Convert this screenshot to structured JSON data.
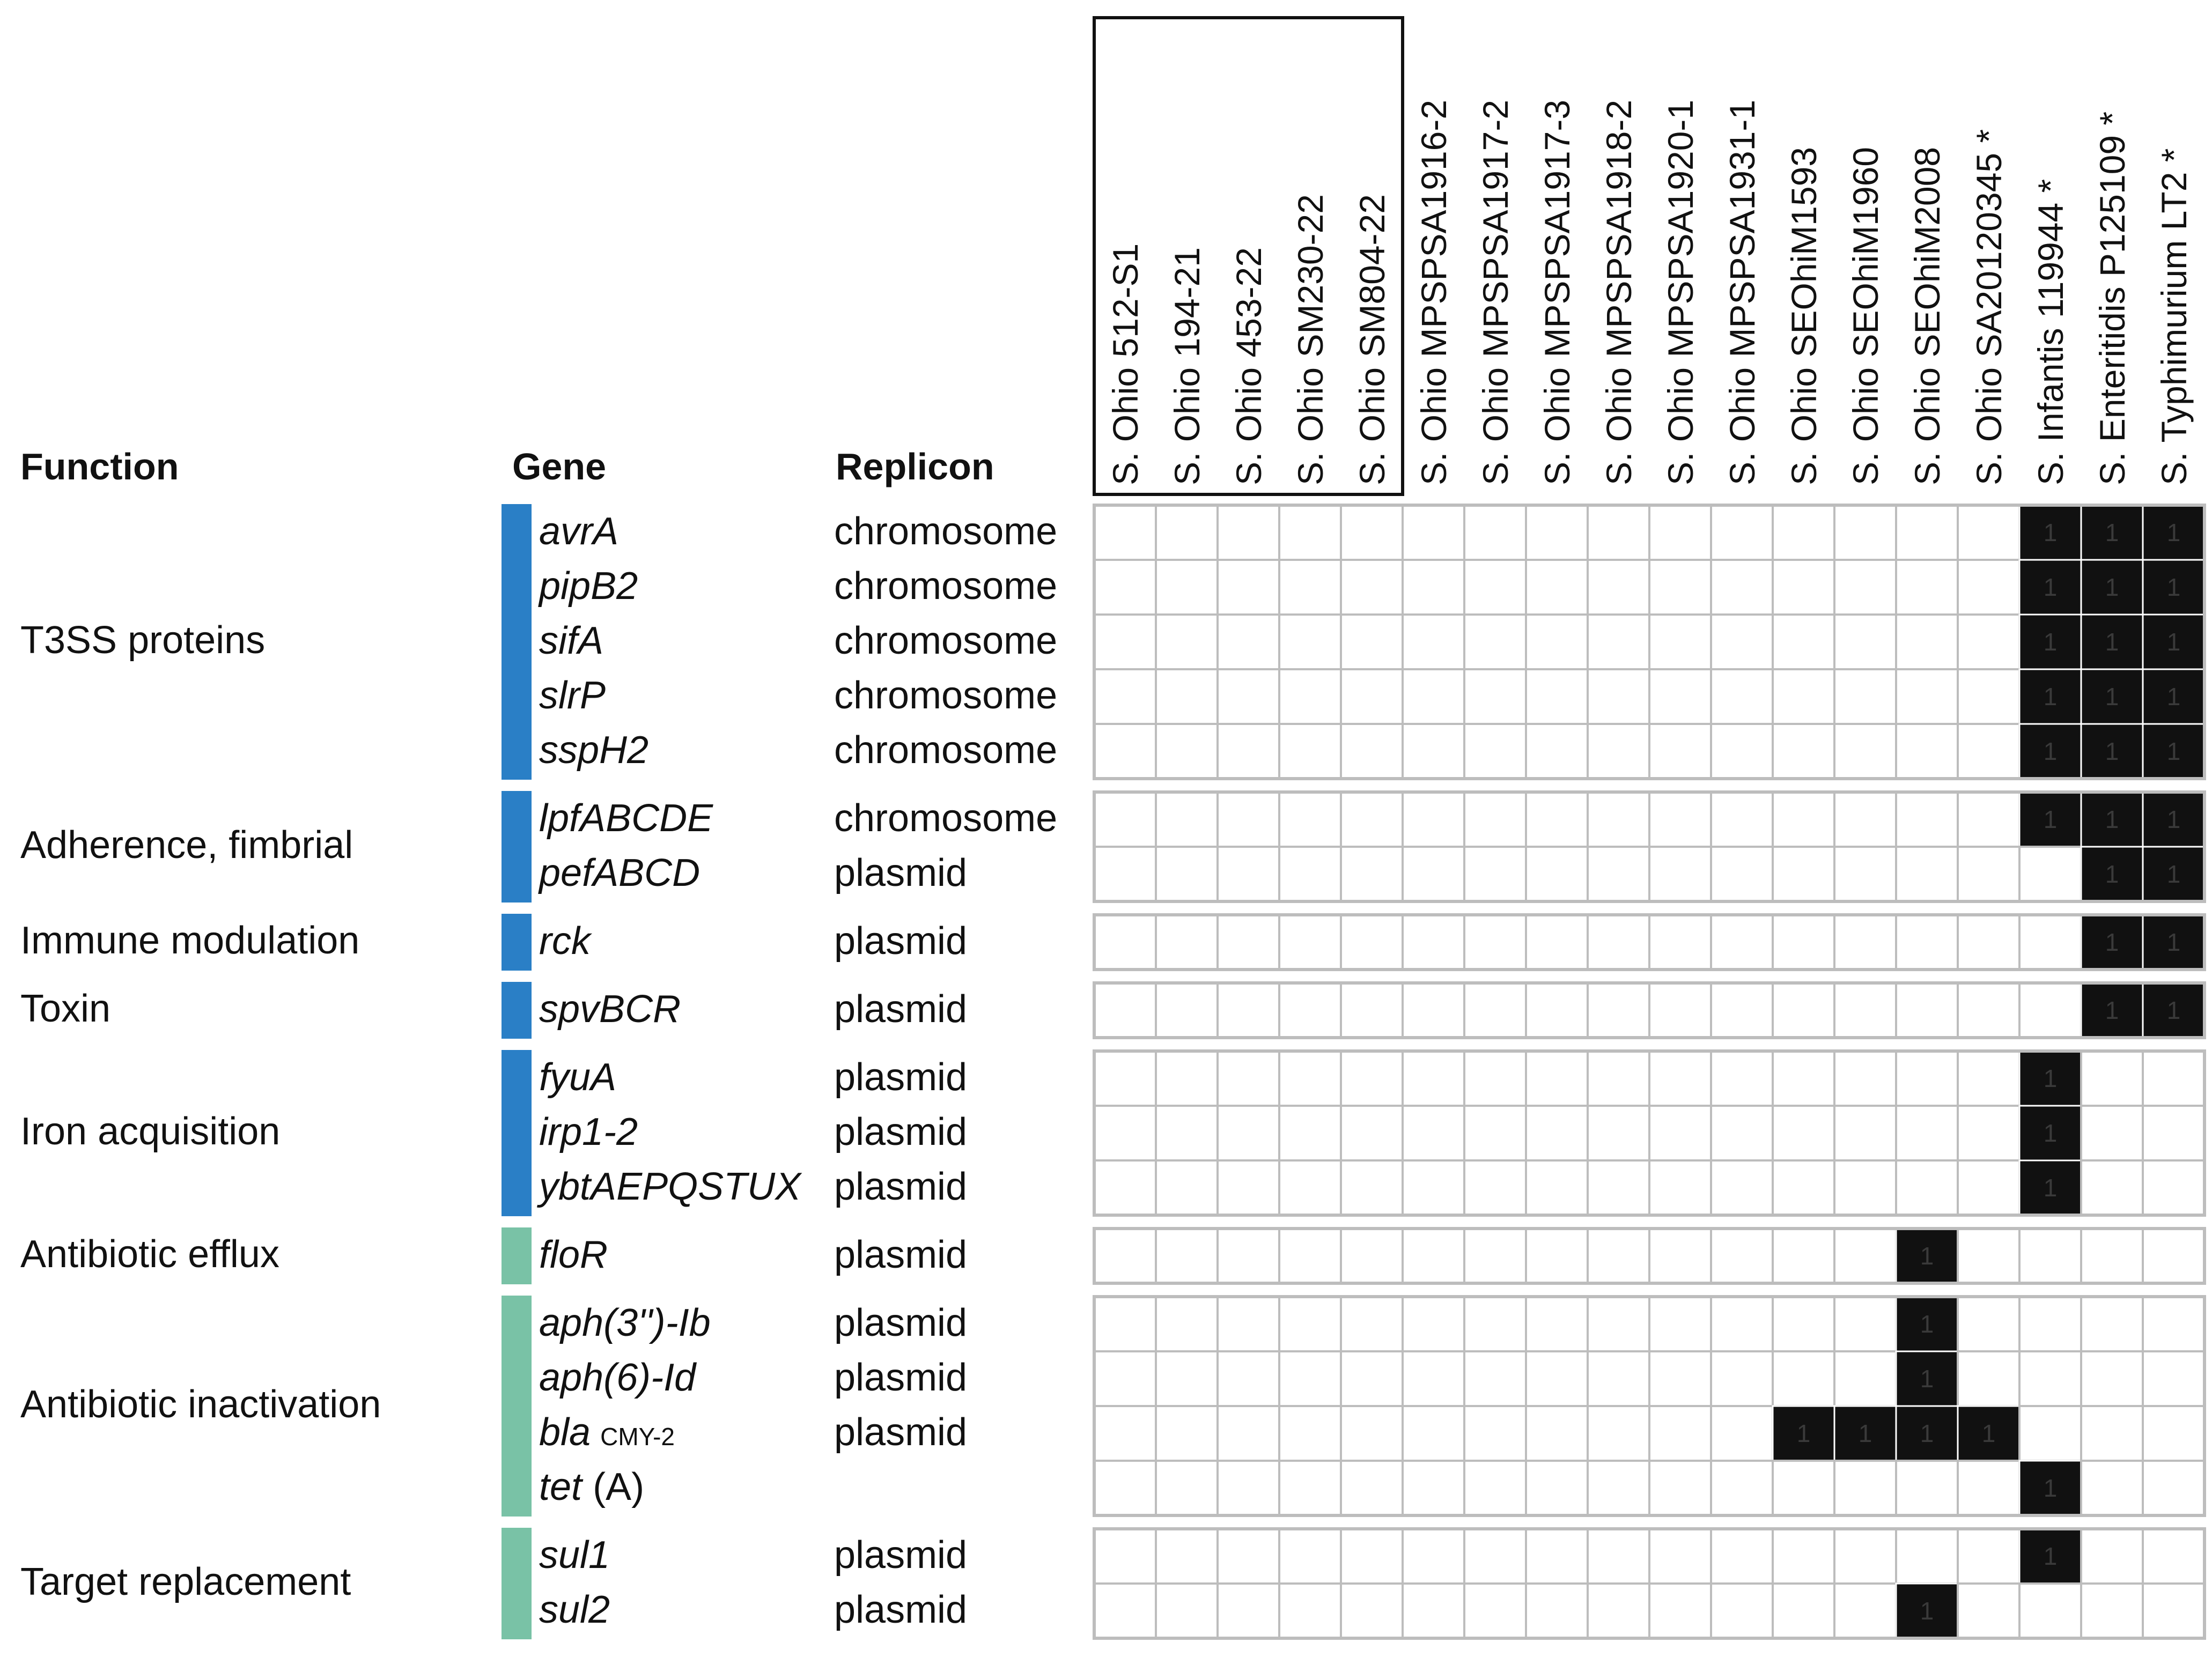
{
  "headers": {
    "function": "Function",
    "gene": "Gene",
    "replicon": "Replicon"
  },
  "colors": {
    "virulence": "#2a7fc6",
    "resistance": "#79c2a6",
    "present": "#111111",
    "grid": "#bdbdbd"
  },
  "chart_data": {
    "type": "heatmap",
    "title": "",
    "columns": [
      "S. Ohio 512-S1",
      "S. Ohio 194-21",
      "S. Ohio 453-22",
      "S. Ohio SM230-22",
      "S. Ohio SM804-22",
      "S. Ohio MPSPSA1916-2",
      "S. Ohio MPSPSA1917-2",
      "S. Ohio MPSPSA1917-3",
      "S. Ohio MPSPSA1918-2",
      "S. Ohio MPSPSA1920-1",
      "S. Ohio MPSPSA1931-1",
      "S. Ohio SEOhiM1593",
      "S. Ohio SEOhiM1960",
      "S. Ohio SEOhiM2008",
      "S. Ohio SA20120345 *",
      "S. Infantis 119944 *",
      "S. Enteritidis P125109 *",
      "S. Typhimurium LT2 *"
    ],
    "boxed_columns": [
      "S. Ohio 512-S1",
      "S. Ohio 194-21",
      "S. Ohio 453-22",
      "S. Ohio SM230-22",
      "S. Ohio SM804-22"
    ],
    "present_label": "1",
    "groups": [
      {
        "function": "T3SS proteins",
        "category": "virulence",
        "rows": [
          {
            "gene": "avrA",
            "replicon": "chromosome",
            "values": [
              0,
              0,
              0,
              0,
              0,
              0,
              0,
              0,
              0,
              0,
              0,
              0,
              0,
              0,
              0,
              1,
              1,
              1
            ]
          },
          {
            "gene": "pipB2",
            "replicon": "chromosome",
            "values": [
              0,
              0,
              0,
              0,
              0,
              0,
              0,
              0,
              0,
              0,
              0,
              0,
              0,
              0,
              0,
              1,
              1,
              1
            ]
          },
          {
            "gene": "sifA",
            "replicon": "chromosome",
            "values": [
              0,
              0,
              0,
              0,
              0,
              0,
              0,
              0,
              0,
              0,
              0,
              0,
              0,
              0,
              0,
              1,
              1,
              1
            ]
          },
          {
            "gene": "slrP",
            "replicon": "chromosome",
            "values": [
              0,
              0,
              0,
              0,
              0,
              0,
              0,
              0,
              0,
              0,
              0,
              0,
              0,
              0,
              0,
              1,
              1,
              1
            ]
          },
          {
            "gene": "sspH2",
            "replicon": "chromosome",
            "values": [
              0,
              0,
              0,
              0,
              0,
              0,
              0,
              0,
              0,
              0,
              0,
              0,
              0,
              0,
              0,
              1,
              1,
              1
            ]
          }
        ]
      },
      {
        "function": "Adherence, fimbrial",
        "category": "virulence",
        "rows": [
          {
            "gene": "lpfABCDE",
            "replicon": "chromosome",
            "values": [
              0,
              0,
              0,
              0,
              0,
              0,
              0,
              0,
              0,
              0,
              0,
              0,
              0,
              0,
              0,
              1,
              1,
              1
            ]
          },
          {
            "gene": "pefABCD",
            "replicon": "plasmid",
            "values": [
              0,
              0,
              0,
              0,
              0,
              0,
              0,
              0,
              0,
              0,
              0,
              0,
              0,
              0,
              0,
              0,
              1,
              1
            ]
          }
        ]
      },
      {
        "function": "Immune modulation",
        "category": "virulence",
        "rows": [
          {
            "gene": "rck",
            "replicon": "plasmid",
            "values": [
              0,
              0,
              0,
              0,
              0,
              0,
              0,
              0,
              0,
              0,
              0,
              0,
              0,
              0,
              0,
              0,
              1,
              1
            ]
          }
        ]
      },
      {
        "function": "Toxin",
        "category": "virulence",
        "rows": [
          {
            "gene": "spvBCR",
            "replicon": "plasmid",
            "values": [
              0,
              0,
              0,
              0,
              0,
              0,
              0,
              0,
              0,
              0,
              0,
              0,
              0,
              0,
              0,
              0,
              1,
              1
            ]
          }
        ]
      },
      {
        "function": "Iron acquisition",
        "category": "virulence",
        "rows": [
          {
            "gene": "fyuA",
            "replicon": "plasmid",
            "values": [
              0,
              0,
              0,
              0,
              0,
              0,
              0,
              0,
              0,
              0,
              0,
              0,
              0,
              0,
              0,
              1,
              0,
              0
            ]
          },
          {
            "gene": "irp1-2",
            "replicon": "plasmid",
            "values": [
              0,
              0,
              0,
              0,
              0,
              0,
              0,
              0,
              0,
              0,
              0,
              0,
              0,
              0,
              0,
              1,
              0,
              0
            ]
          },
          {
            "gene": "ybtAEPQSTUX",
            "replicon": "plasmid",
            "values": [
              0,
              0,
              0,
              0,
              0,
              0,
              0,
              0,
              0,
              0,
              0,
              0,
              0,
              0,
              0,
              1,
              0,
              0
            ]
          }
        ]
      },
      {
        "function": "Antibiotic efflux",
        "category": "resistance",
        "rows": [
          {
            "gene": "floR",
            "replicon": "plasmid",
            "values": [
              0,
              0,
              0,
              0,
              0,
              0,
              0,
              0,
              0,
              0,
              0,
              0,
              0,
              1,
              0,
              0,
              0,
              0
            ]
          }
        ]
      },
      {
        "function": "Antibiotic inactivation",
        "category": "resistance",
        "rows": [
          {
            "gene": "aph(3'')-Ib",
            "replicon": "plasmid",
            "values": [
              0,
              0,
              0,
              0,
              0,
              0,
              0,
              0,
              0,
              0,
              0,
              0,
              0,
              1,
              0,
              0,
              0,
              0
            ]
          },
          {
            "gene": "aph(6)-Id",
            "replicon": "plasmid",
            "values": [
              0,
              0,
              0,
              0,
              0,
              0,
              0,
              0,
              0,
              0,
              0,
              0,
              0,
              1,
              0,
              0,
              0,
              0
            ]
          },
          {
            "gene": "bla",
            "gene_sub": "CMY-2",
            "replicon": "plasmid",
            "values": [
              0,
              0,
              0,
              0,
              0,
              0,
              0,
              0,
              0,
              0,
              0,
              1,
              1,
              1,
              1,
              0,
              0,
              0
            ]
          },
          {
            "gene": "tet",
            "gene_suffix": "(A)",
            "replicon": "",
            "values": [
              0,
              0,
              0,
              0,
              0,
              0,
              0,
              0,
              0,
              0,
              0,
              0,
              0,
              0,
              0,
              1,
              0,
              0
            ]
          }
        ]
      },
      {
        "function": "Target replacement",
        "category": "resistance",
        "rows": [
          {
            "gene": "sul1",
            "replicon": "plasmid",
            "values": [
              0,
              0,
              0,
              0,
              0,
              0,
              0,
              0,
              0,
              0,
              0,
              0,
              0,
              0,
              0,
              1,
              0,
              0
            ]
          },
          {
            "gene": "sul2",
            "replicon": "plasmid",
            "values": [
              0,
              0,
              0,
              0,
              0,
              0,
              0,
              0,
              0,
              0,
              0,
              0,
              0,
              1,
              0,
              0,
              0,
              0
            ]
          }
        ]
      }
    ]
  }
}
